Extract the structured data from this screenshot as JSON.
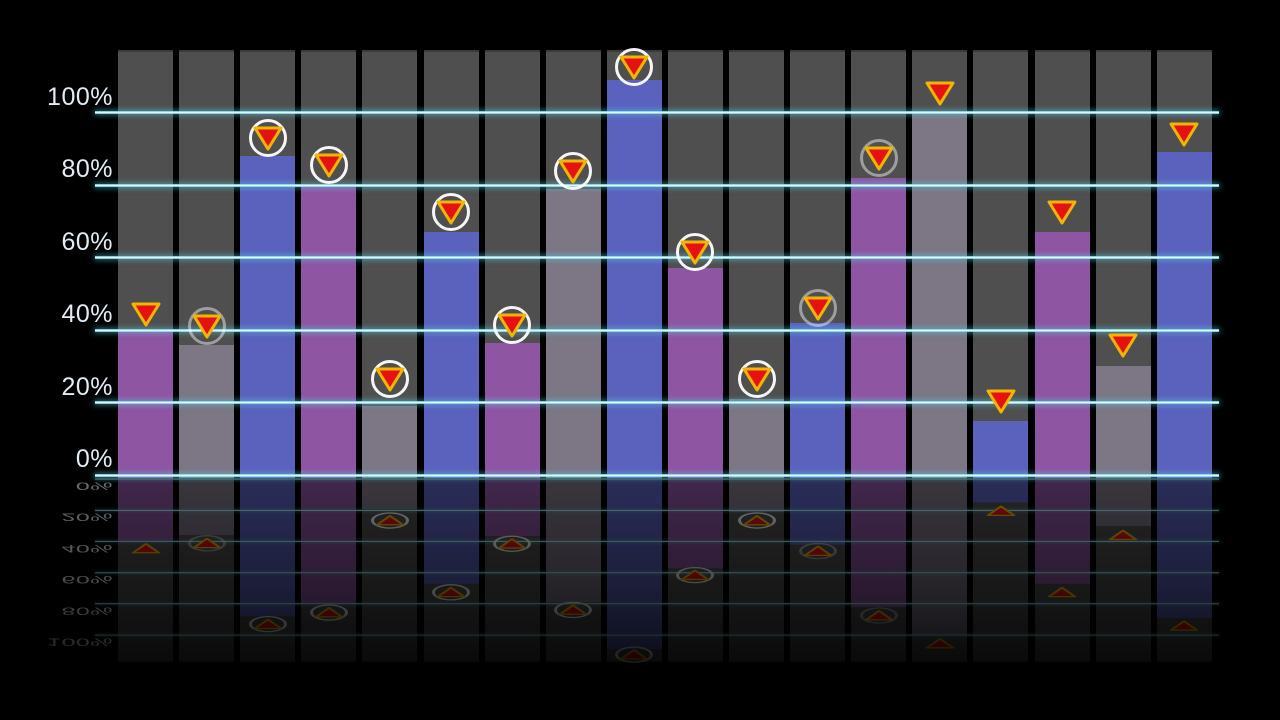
{
  "page": {
    "background_color": "#000000"
  },
  "chart_data": {
    "type": "bar",
    "title": "",
    "xlabel": "",
    "ylabel": "",
    "x_axis": {
      "category_labels_visible": false
    },
    "y_axis": {
      "tick_labels": [
        "0%",
        "20%",
        "40%",
        "60%",
        "80%",
        "100%"
      ],
      "tick_values": [
        0,
        20,
        40,
        60,
        80,
        100
      ],
      "range": [
        0,
        117
      ]
    },
    "grid": true,
    "legend": false,
    "bars": [
      {
        "index": 1,
        "value": 40,
        "color_key": "purple",
        "marker_value": 44.5,
        "marker_ring": "none"
      },
      {
        "index": 2,
        "value": 36,
        "color_key": "gray",
        "marker_value": 41,
        "marker_ring": "faint"
      },
      {
        "index": 3,
        "value": 88,
        "color_key": "blue",
        "marker_value": 93,
        "marker_ring": "bright"
      },
      {
        "index": 4,
        "value": 80,
        "color_key": "purple",
        "marker_value": 85.5,
        "marker_ring": "bright"
      },
      {
        "index": 5,
        "value": 19,
        "color_key": "gray",
        "marker_value": 26.5,
        "marker_ring": "bright"
      },
      {
        "index": 6,
        "value": 67,
        "color_key": "blue",
        "marker_value": 72.5,
        "marker_ring": "bright"
      },
      {
        "index": 7,
        "value": 36.5,
        "color_key": "purple",
        "marker_value": 41.5,
        "marker_ring": "bright"
      },
      {
        "index": 8,
        "value": 79,
        "color_key": "gray",
        "marker_value": 84,
        "marker_ring": "bright"
      },
      {
        "index": 9,
        "value": 109,
        "color_key": "blue",
        "marker_value": 112.5,
        "marker_ring": "bright"
      },
      {
        "index": 10,
        "value": 57,
        "color_key": "purple",
        "marker_value": 61.5,
        "marker_ring": "bright"
      },
      {
        "index": 11,
        "value": 21,
        "color_key": "gray",
        "marker_value": 26.5,
        "marker_ring": "bright"
      },
      {
        "index": 12,
        "value": 42,
        "color_key": "blue",
        "marker_value": 46,
        "marker_ring": "faint"
      },
      {
        "index": 13,
        "value": 82,
        "color_key": "purple",
        "marker_value": 87.5,
        "marker_ring": "faint"
      },
      {
        "index": 14,
        "value": 100,
        "color_key": "gray",
        "marker_value": 105.5,
        "marker_ring": "none"
      },
      {
        "index": 15,
        "value": 15,
        "color_key": "blue",
        "marker_value": 20.5,
        "marker_ring": "none"
      },
      {
        "index": 16,
        "value": 67,
        "color_key": "purple",
        "marker_value": 72.5,
        "marker_ring": "none"
      },
      {
        "index": 17,
        "value": 30,
        "color_key": "gray",
        "marker_value": 36,
        "marker_ring": "none"
      },
      {
        "index": 18,
        "value": 89,
        "color_key": "blue",
        "marker_value": 94,
        "marker_ring": "none"
      }
    ],
    "bar_colors": {
      "purple": "#8e55a3",
      "gray": "#7c7685",
      "blue": "#5a62bd"
    },
    "marker_style": {
      "shape": "triangle-down",
      "fill": "#e61212",
      "stroke": "#f2b600",
      "ring_color": "#ffffff"
    },
    "style": {
      "column_background": "#4f4f4f",
      "gridline_core": "#ffffff",
      "gridline_glow": "#5ad2e6",
      "tick_label_color": "#e3ecf4",
      "reflection": true
    }
  }
}
